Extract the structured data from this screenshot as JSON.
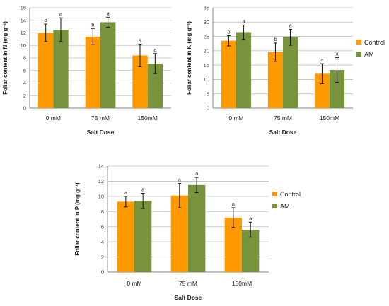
{
  "colors": {
    "control": "#ff9900",
    "am": "#77933c",
    "grid": "#bfbfbf",
    "axis": "#808080",
    "error": "#111111"
  },
  "chart_data": [
    {
      "type": "bar",
      "ylabel": "Foliar content in N  (mg g⁻¹)",
      "xlabel": "Salt Dose",
      "categories": [
        "0 mM",
        "75 mM",
        "150mM"
      ],
      "ylim": [
        0,
        16
      ],
      "yticks": [
        0,
        2,
        4,
        6,
        8,
        10,
        12,
        14,
        16
      ],
      "grid": true,
      "legend": null,
      "series": [
        {
          "key": "control",
          "values": [
            12.0,
            11.4,
            8.4
          ],
          "errors": [
            1.4,
            1.3,
            1.8
          ],
          "sig": [
            "a",
            "b",
            "a"
          ]
        },
        {
          "key": "am",
          "values": [
            12.5,
            13.7,
            7.1
          ],
          "errors": [
            1.9,
            0.8,
            1.6
          ],
          "sig": [
            "a",
            "a",
            "a"
          ]
        }
      ]
    },
    {
      "type": "bar",
      "ylabel": "Foliar content in K  (mg g⁻¹)",
      "xlabel": "Salt Dose",
      "categories": [
        "0 mM",
        "75 mM",
        "150mM"
      ],
      "ylim": [
        0,
        35
      ],
      "yticks": [
        0,
        5,
        10,
        15,
        20,
        25,
        30,
        35
      ],
      "grid": true,
      "legend": "right",
      "series": [
        {
          "key": "control",
          "name": "Control",
          "values": [
            23.5,
            19.5,
            12.0
          ],
          "errors": [
            1.8,
            3.2,
            3.5
          ],
          "sig": [
            "b",
            "b",
            "a"
          ]
        },
        {
          "key": "am",
          "name": "AM",
          "values": [
            26.5,
            24.7,
            13.3
          ],
          "errors": [
            2.5,
            2.8,
            4.3
          ],
          "sig": [
            "a",
            "a",
            "a"
          ]
        }
      ]
    },
    {
      "type": "bar",
      "ylabel": "Foliar content in P (mg g⁻¹)",
      "xlabel": "Salt Dose",
      "categories": [
        "0 mM",
        "75 mM",
        "150mM"
      ],
      "ylim": [
        0,
        14
      ],
      "yticks": [
        0,
        2,
        4,
        6,
        8,
        10,
        12,
        14
      ],
      "grid": true,
      "legend": "right",
      "series": [
        {
          "key": "control",
          "name": "Control",
          "values": [
            9.3,
            10.1,
            7.2
          ],
          "errors": [
            0.7,
            1.6,
            1.3
          ],
          "sig": [
            "a",
            "a",
            "a"
          ]
        },
        {
          "key": "am",
          "name": "AM",
          "values": [
            9.4,
            11.5,
            5.6
          ],
          "errors": [
            1.0,
            1.0,
            1.0
          ],
          "sig": [
            "a",
            "a",
            "a"
          ]
        }
      ]
    }
  ]
}
